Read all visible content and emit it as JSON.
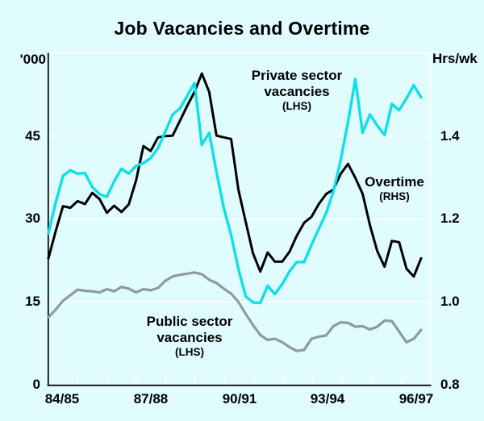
{
  "title": "Job Vacancies and Overtime",
  "axes": {
    "left": {
      "unit": "'000",
      "tick_labels": [
        "45",
        "30",
        "15",
        "0"
      ]
    },
    "right": {
      "unit": "Hrs/wk",
      "tick_labels": [
        "1.4",
        "1.2",
        "1.0",
        "0.8"
      ]
    },
    "x": {
      "labels": [
        "84/85",
        "87/88",
        "90/91",
        "93/94",
        "96/97"
      ]
    }
  },
  "series_labels": {
    "private": {
      "line1": "Private sector",
      "line2": "vacancies",
      "line3": "(LHS)"
    },
    "overtime": {
      "line1": "Overtime",
      "line2": "(RHS)"
    },
    "public": {
      "line1": "Public sector",
      "line2": "vacancies",
      "line3": "(LHS)"
    }
  },
  "colors": {
    "background": "#E0FCFF",
    "grid": "#FFFFFF",
    "axis": "#000000",
    "private": "#10DFE9",
    "overtime": "#000000",
    "public": "#8E9B9B"
  },
  "chart_data": {
    "type": "line",
    "title": "Job Vacancies and Overtime",
    "frequency": "quarterly",
    "x_start": "1984-Q3",
    "x_end": "1997-Q2",
    "x_tick_labels": [
      "84/85",
      "87/88",
      "90/91",
      "93/94",
      "96/97"
    ],
    "left_axis": {
      "unit": "'000",
      "range": [
        0,
        60
      ],
      "ticks": [
        0,
        15,
        30,
        45
      ],
      "gridlines": true
    },
    "right_axis": {
      "unit": "Hrs/wk",
      "range": [
        0.8,
        1.6
      ],
      "ticks": [
        0.8,
        1.0,
        1.2,
        1.4
      ]
    },
    "series": [
      {
        "name": "Private sector vacancies",
        "label": "Private sector vacancies (LHS)",
        "axis": "left",
        "color": "#10DFE9",
        "values": [
          27.4,
          33.0,
          37.8,
          38.8,
          38.2,
          38.3,
          35.8,
          34.5,
          34.0,
          36.8,
          39.1,
          38.2,
          39.6,
          40.1,
          41.0,
          42.8,
          45.8,
          48.9,
          50.0,
          52.3,
          54.6,
          43.4,
          45.6,
          38.5,
          32.0,
          27.1,
          21.0,
          16.0,
          14.9,
          14.8,
          17.9,
          16.4,
          18.2,
          20.5,
          22.2,
          22.2,
          25.3,
          28.2,
          31.0,
          35.0,
          40.7,
          47.5,
          55.3,
          45.6,
          48.9,
          46.9,
          45.2,
          50.8,
          49.7,
          51.8,
          54.2,
          52.0
        ]
      },
      {
        "name": "Overtime",
        "label": "Overtime (RHS)",
        "axis": "right",
        "color": "#000000",
        "values": [
          1.105,
          1.171,
          1.231,
          1.227,
          1.243,
          1.236,
          1.263,
          1.248,
          1.215,
          1.232,
          1.217,
          1.235,
          1.293,
          1.376,
          1.364,
          1.397,
          1.4,
          1.401,
          1.437,
          1.473,
          1.507,
          1.551,
          1.507,
          1.401,
          1.397,
          1.393,
          1.271,
          1.193,
          1.117,
          1.073,
          1.119,
          1.097,
          1.097,
          1.121,
          1.16,
          1.191,
          1.205,
          1.236,
          1.26,
          1.271,
          1.309,
          1.333,
          1.299,
          1.261,
          1.185,
          1.123,
          1.085,
          1.147,
          1.144,
          1.08,
          1.061,
          1.105
        ]
      },
      {
        "name": "Public sector vacancies",
        "label": "Public sector vacancies (LHS)",
        "axis": "left",
        "color": "#8E9B9B",
        "values": [
          12.2,
          13.6,
          15.2,
          16.2,
          17.2,
          17.0,
          16.9,
          16.7,
          17.3,
          16.9,
          17.7,
          17.4,
          16.7,
          17.3,
          17.1,
          17.5,
          18.8,
          19.6,
          19.9,
          20.1,
          20.3,
          20.0,
          19.0,
          18.4,
          17.4,
          16.5,
          15.0,
          12.8,
          10.8,
          9.0,
          8.1,
          8.3,
          7.7,
          6.8,
          6.1,
          6.3,
          8.3,
          8.7,
          8.9,
          10.6,
          11.3,
          11.2,
          10.5,
          10.6,
          10.0,
          10.5,
          11.6,
          11.5,
          9.6,
          7.7,
          8.3,
          9.9
        ]
      }
    ]
  }
}
